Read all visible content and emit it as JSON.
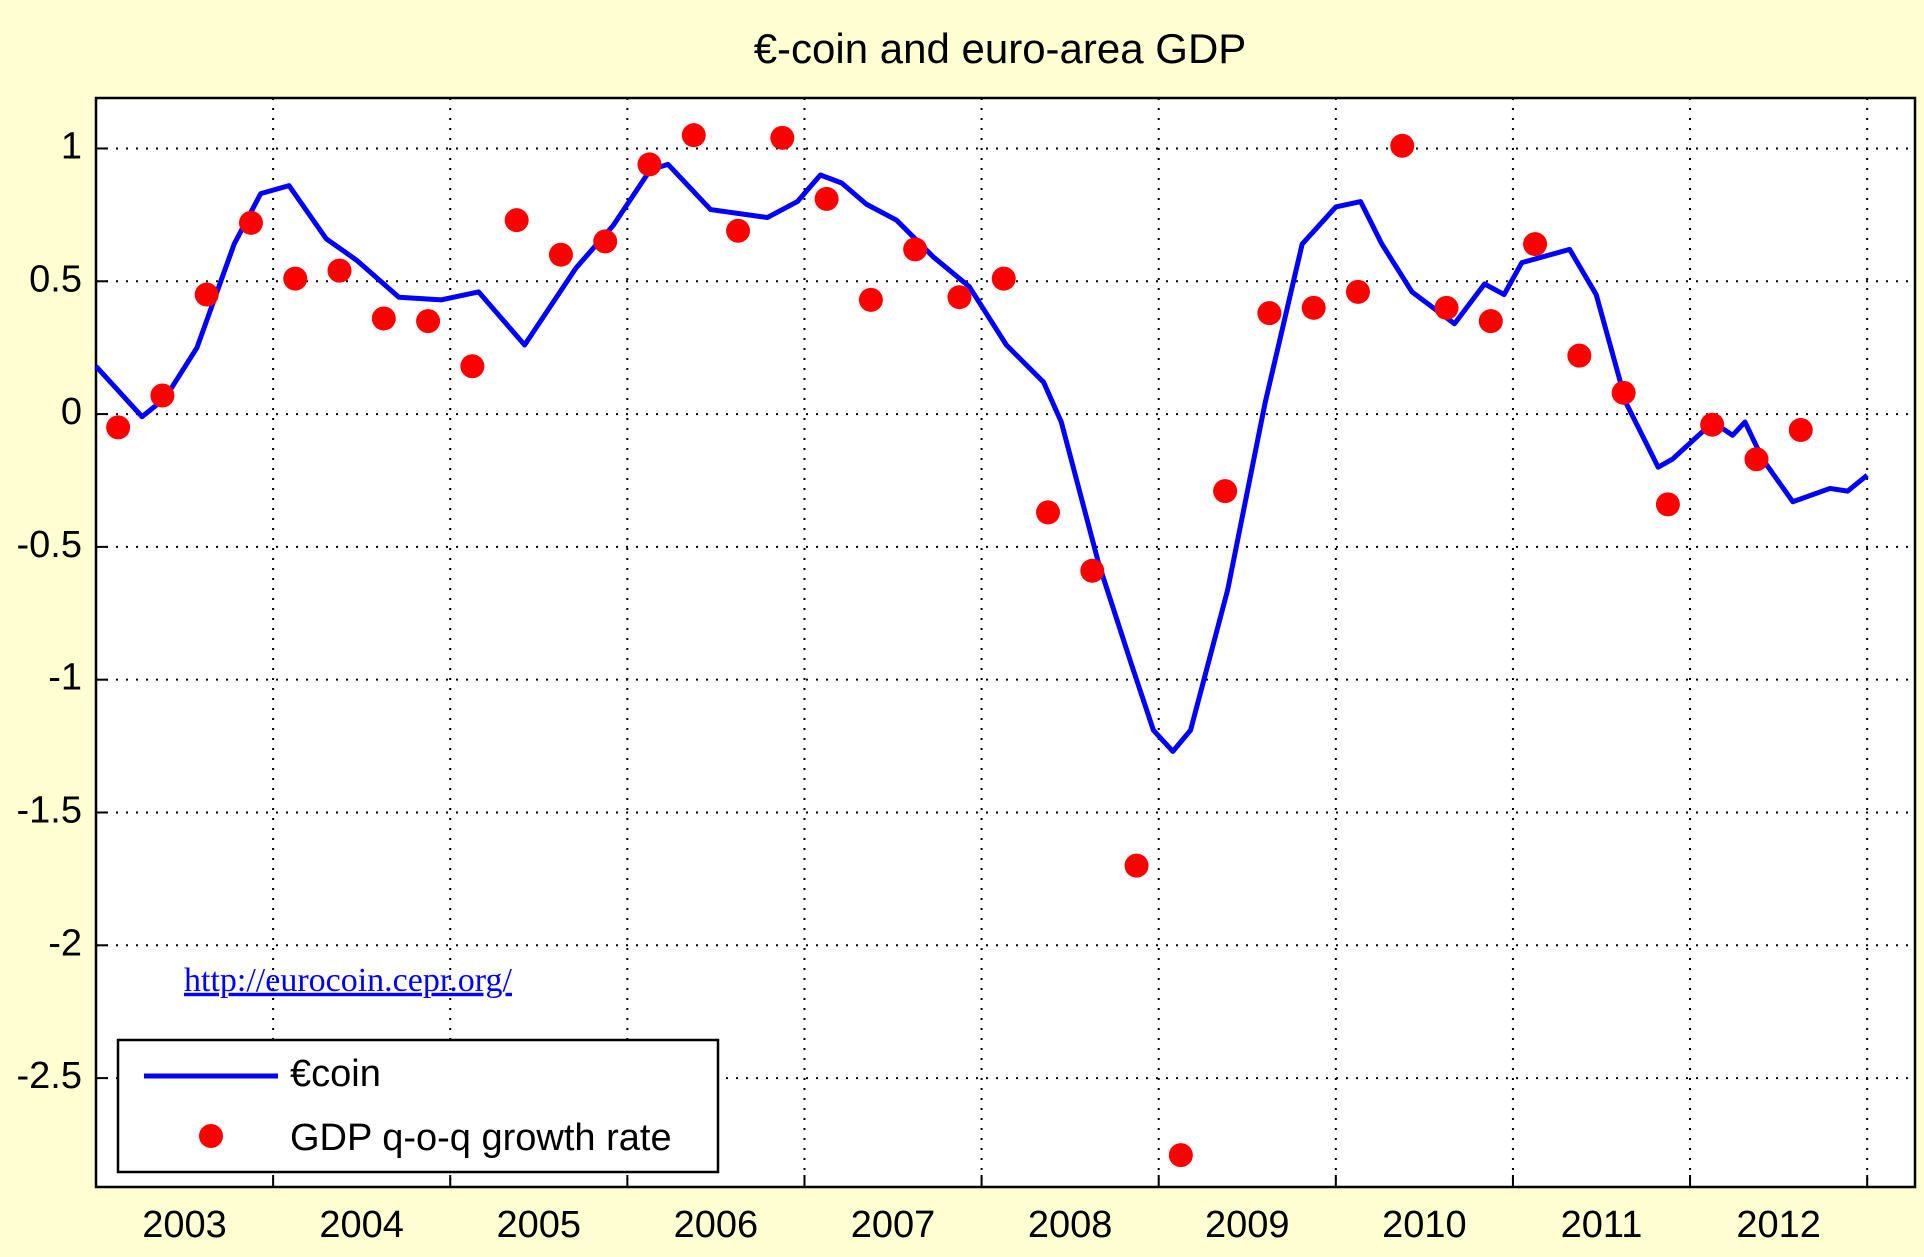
{
  "chart_data": {
    "type": "line",
    "title": "€-coin and euro-area GDP",
    "annotation": "http://eurocoin.cepr.org/",
    "xlim": [
      2003,
      2013.27
    ],
    "ylim": [
      -2.91,
      1.19
    ],
    "xticks": [
      {
        "value": 2003.5,
        "label": "2003"
      },
      {
        "value": 2004.5,
        "label": "2004"
      },
      {
        "value": 2005.5,
        "label": "2005"
      },
      {
        "value": 2006.5,
        "label": "2006"
      },
      {
        "value": 2007.5,
        "label": "2007"
      },
      {
        "value": 2008.5,
        "label": "2008"
      },
      {
        "value": 2009.5,
        "label": "2009"
      },
      {
        "value": 2010.5,
        "label": "2010"
      },
      {
        "value": 2011.5,
        "label": "2011"
      },
      {
        "value": 2012.5,
        "label": "2012"
      }
    ],
    "xgrid": [
      2004,
      2005,
      2006,
      2007,
      2008,
      2009,
      2010,
      2011,
      2012,
      2013
    ],
    "yticks": [
      1,
      0.5,
      0,
      -0.5,
      -1,
      -1.5,
      -2,
      -2.5
    ],
    "grid": true,
    "legend": "lower left",
    "series": [
      {
        "name": "€coin",
        "type": "line",
        "color": "#0000ff",
        "x": [
          2003.0,
          2003.26,
          2003.39,
          2003.57,
          2003.78,
          2003.93,
          2004.09,
          2004.3,
          2004.47,
          2004.71,
          2004.95,
          2005.16,
          2005.42,
          2005.71,
          2005.92,
          2006.13,
          2006.23,
          2006.47,
          2006.79,
          2006.96,
          2007.09,
          2007.21,
          2007.35,
          2007.52,
          2007.73,
          2007.93,
          2008.14,
          2008.35,
          2008.45,
          2008.66,
          2008.84,
          2008.97,
          2009.08,
          2009.18,
          2009.39,
          2009.6,
          2009.81,
          2010.0,
          2010.14,
          2010.26,
          2010.43,
          2010.67,
          2010.84,
          2010.95,
          2011.05,
          2011.32,
          2011.47,
          2011.64,
          2011.82,
          2011.9,
          2012.13,
          2012.24,
          2012.31,
          2012.41,
          2012.58,
          2012.79,
          2012.89,
          2013.0
        ],
        "values": [
          0.18,
          -0.01,
          0.06,
          0.25,
          0.64,
          0.83,
          0.86,
          0.66,
          0.58,
          0.44,
          0.43,
          0.46,
          0.26,
          0.55,
          0.71,
          0.92,
          0.94,
          0.77,
          0.74,
          0.8,
          0.9,
          0.87,
          0.79,
          0.73,
          0.59,
          0.48,
          0.26,
          0.12,
          -0.03,
          -0.56,
          -0.93,
          -1.19,
          -1.27,
          -1.19,
          -0.66,
          0.04,
          0.64,
          0.78,
          0.8,
          0.64,
          0.46,
          0.34,
          0.49,
          0.45,
          0.57,
          0.62,
          0.45,
          0.04,
          -0.2,
          -0.17,
          -0.03,
          -0.08,
          -0.03,
          -0.17,
          -0.33,
          -0.28,
          -0.29,
          -0.23
        ]
      },
      {
        "name": "GDP q-o-q growth rate",
        "type": "scatter",
        "color": "#ff0000",
        "x": [
          2003.125,
          2003.375,
          2003.625,
          2003.875,
          2004.125,
          2004.375,
          2004.625,
          2004.875,
          2005.125,
          2005.375,
          2005.625,
          2005.875,
          2006.125,
          2006.375,
          2006.625,
          2006.875,
          2007.125,
          2007.375,
          2007.625,
          2007.875,
          2008.125,
          2008.375,
          2008.625,
          2008.875,
          2009.125,
          2009.375,
          2009.625,
          2009.875,
          2010.125,
          2010.375,
          2010.625,
          2010.875,
          2011.125,
          2011.375,
          2011.625,
          2011.875,
          2012.125,
          2012.375,
          2012.625
        ],
        "values": [
          -0.05,
          0.07,
          0.45,
          0.72,
          0.51,
          0.54,
          0.36,
          0.35,
          0.18,
          0.73,
          0.6,
          0.65,
          0.94,
          1.05,
          0.69,
          1.04,
          0.81,
          0.43,
          0.62,
          0.44,
          0.51,
          -0.37,
          -0.59,
          -1.7,
          -2.79,
          -0.29,
          0.38,
          0.4,
          0.46,
          1.01,
          0.4,
          0.35,
          0.64,
          0.22,
          0.08,
          -0.34,
          -0.04,
          -0.17,
          -0.06
        ]
      }
    ]
  }
}
